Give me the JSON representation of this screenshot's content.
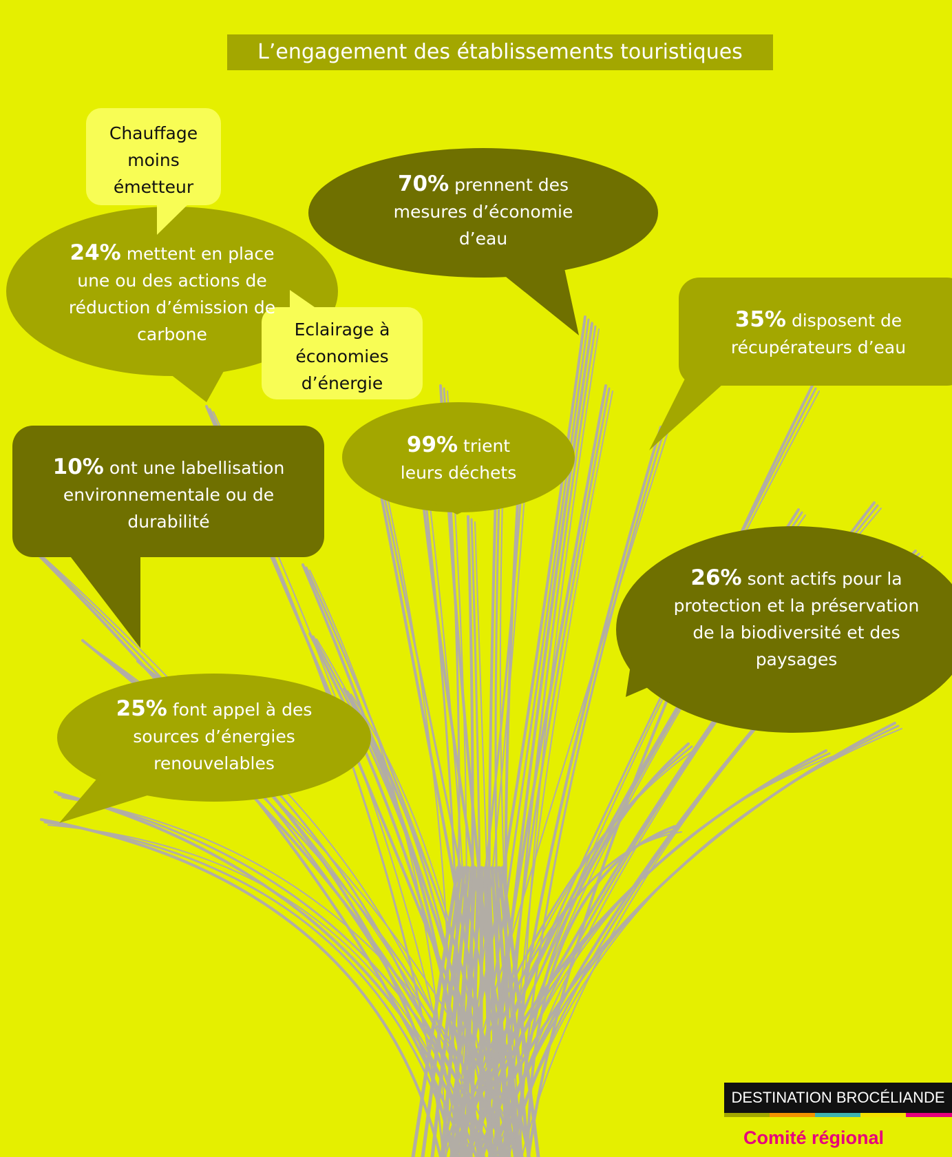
{
  "title": "L’engagement des établissements touristiques",
  "bubbles": [
    {
      "percent": "24%",
      "text": "mettent en place une ou des actions de réduction d’émission de carbone"
    },
    {
      "percent": "70%",
      "text": "prennent des mesures d’économie d’eau"
    },
    {
      "percent": "35%",
      "text": "disposent de récupérateurs d’eau"
    },
    {
      "percent": "99%",
      "text": "trient leurs déchets"
    },
    {
      "percent": "10%",
      "text": "ont une labellisation environnementale ou de durabilité"
    },
    {
      "percent": "26%",
      "text": "sont actifs pour la protection et la préservation de la biodiversité et des paysages"
    },
    {
      "percent": "25%",
      "text": "font appel à des sources d’énergies renouvelables"
    }
  ],
  "notes": [
    "Chauffage moins émetteur",
    "Eclairage à économies d’énergie"
  ],
  "footer": {
    "brand": "DESTINATION BROCÉLIANDE",
    "org": "Comité régional"
  }
}
